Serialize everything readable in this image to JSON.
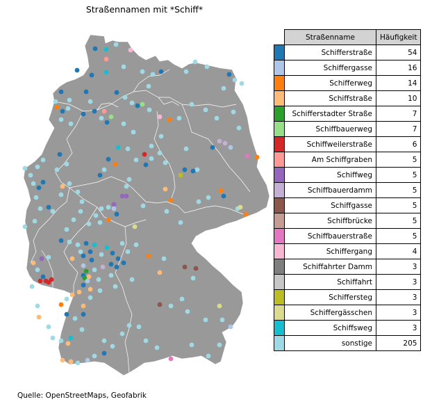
{
  "title": "Straßennamen mit *Schiff*",
  "source": "Quelle: OpenStreetMaps, Geofabrik",
  "table": {
    "headers": {
      "name": "Straßenname",
      "count": "Häufigkeit"
    },
    "rows": [
      {
        "name": "Schifferstraße",
        "count": "54",
        "color": "#1f77b4"
      },
      {
        "name": "Schiffergasse",
        "count": "16",
        "color": "#aec7e8"
      },
      {
        "name": "Schifferweg",
        "count": "14",
        "color": "#ff7f0e"
      },
      {
        "name": "Schiffstraße",
        "count": "10",
        "color": "#ffbb78"
      },
      {
        "name": "Schifferstadter Straße",
        "count": "7",
        "color": "#2ca02c"
      },
      {
        "name": "Schiffbauerweg",
        "count": "7",
        "color": "#98df8a"
      },
      {
        "name": "Schiffweilerstraße",
        "count": "6",
        "color": "#d62728"
      },
      {
        "name": "Am Schiffgraben",
        "count": "5",
        "color": "#ff9896"
      },
      {
        "name": "Schiffweg",
        "count": "5",
        "color": "#9467bd"
      },
      {
        "name": "Schiffbauerdamm",
        "count": "5",
        "color": "#c5b0d5"
      },
      {
        "name": "Schiffgasse",
        "count": "5",
        "color": "#8c564b"
      },
      {
        "name": "Schiffbrücke",
        "count": "5",
        "color": "#c49c94"
      },
      {
        "name": "Schiffbauerstraße",
        "count": "5",
        "color": "#e377c2"
      },
      {
        "name": "Schiffergang",
        "count": "4",
        "color": "#f7b6d2"
      },
      {
        "name": "Schiffahrter Damm",
        "count": "3",
        "color": "#7f7f7f"
      },
      {
        "name": "Schiffahrt",
        "count": "3",
        "color": "#c7c7c7"
      },
      {
        "name": "Schiffersteg",
        "count": "3",
        "color": "#bcbd22"
      },
      {
        "name": "Schiffergässchen",
        "count": "3",
        "color": "#dbdb8d"
      },
      {
        "name": "Schiffsweg",
        "count": "3",
        "color": "#17becf"
      },
      {
        "name": "sonstige",
        "count": "205",
        "color": "#9edae5"
      }
    ]
  },
  "map": {
    "land_color": "#999999",
    "border_color": "#ffffff"
  }
}
